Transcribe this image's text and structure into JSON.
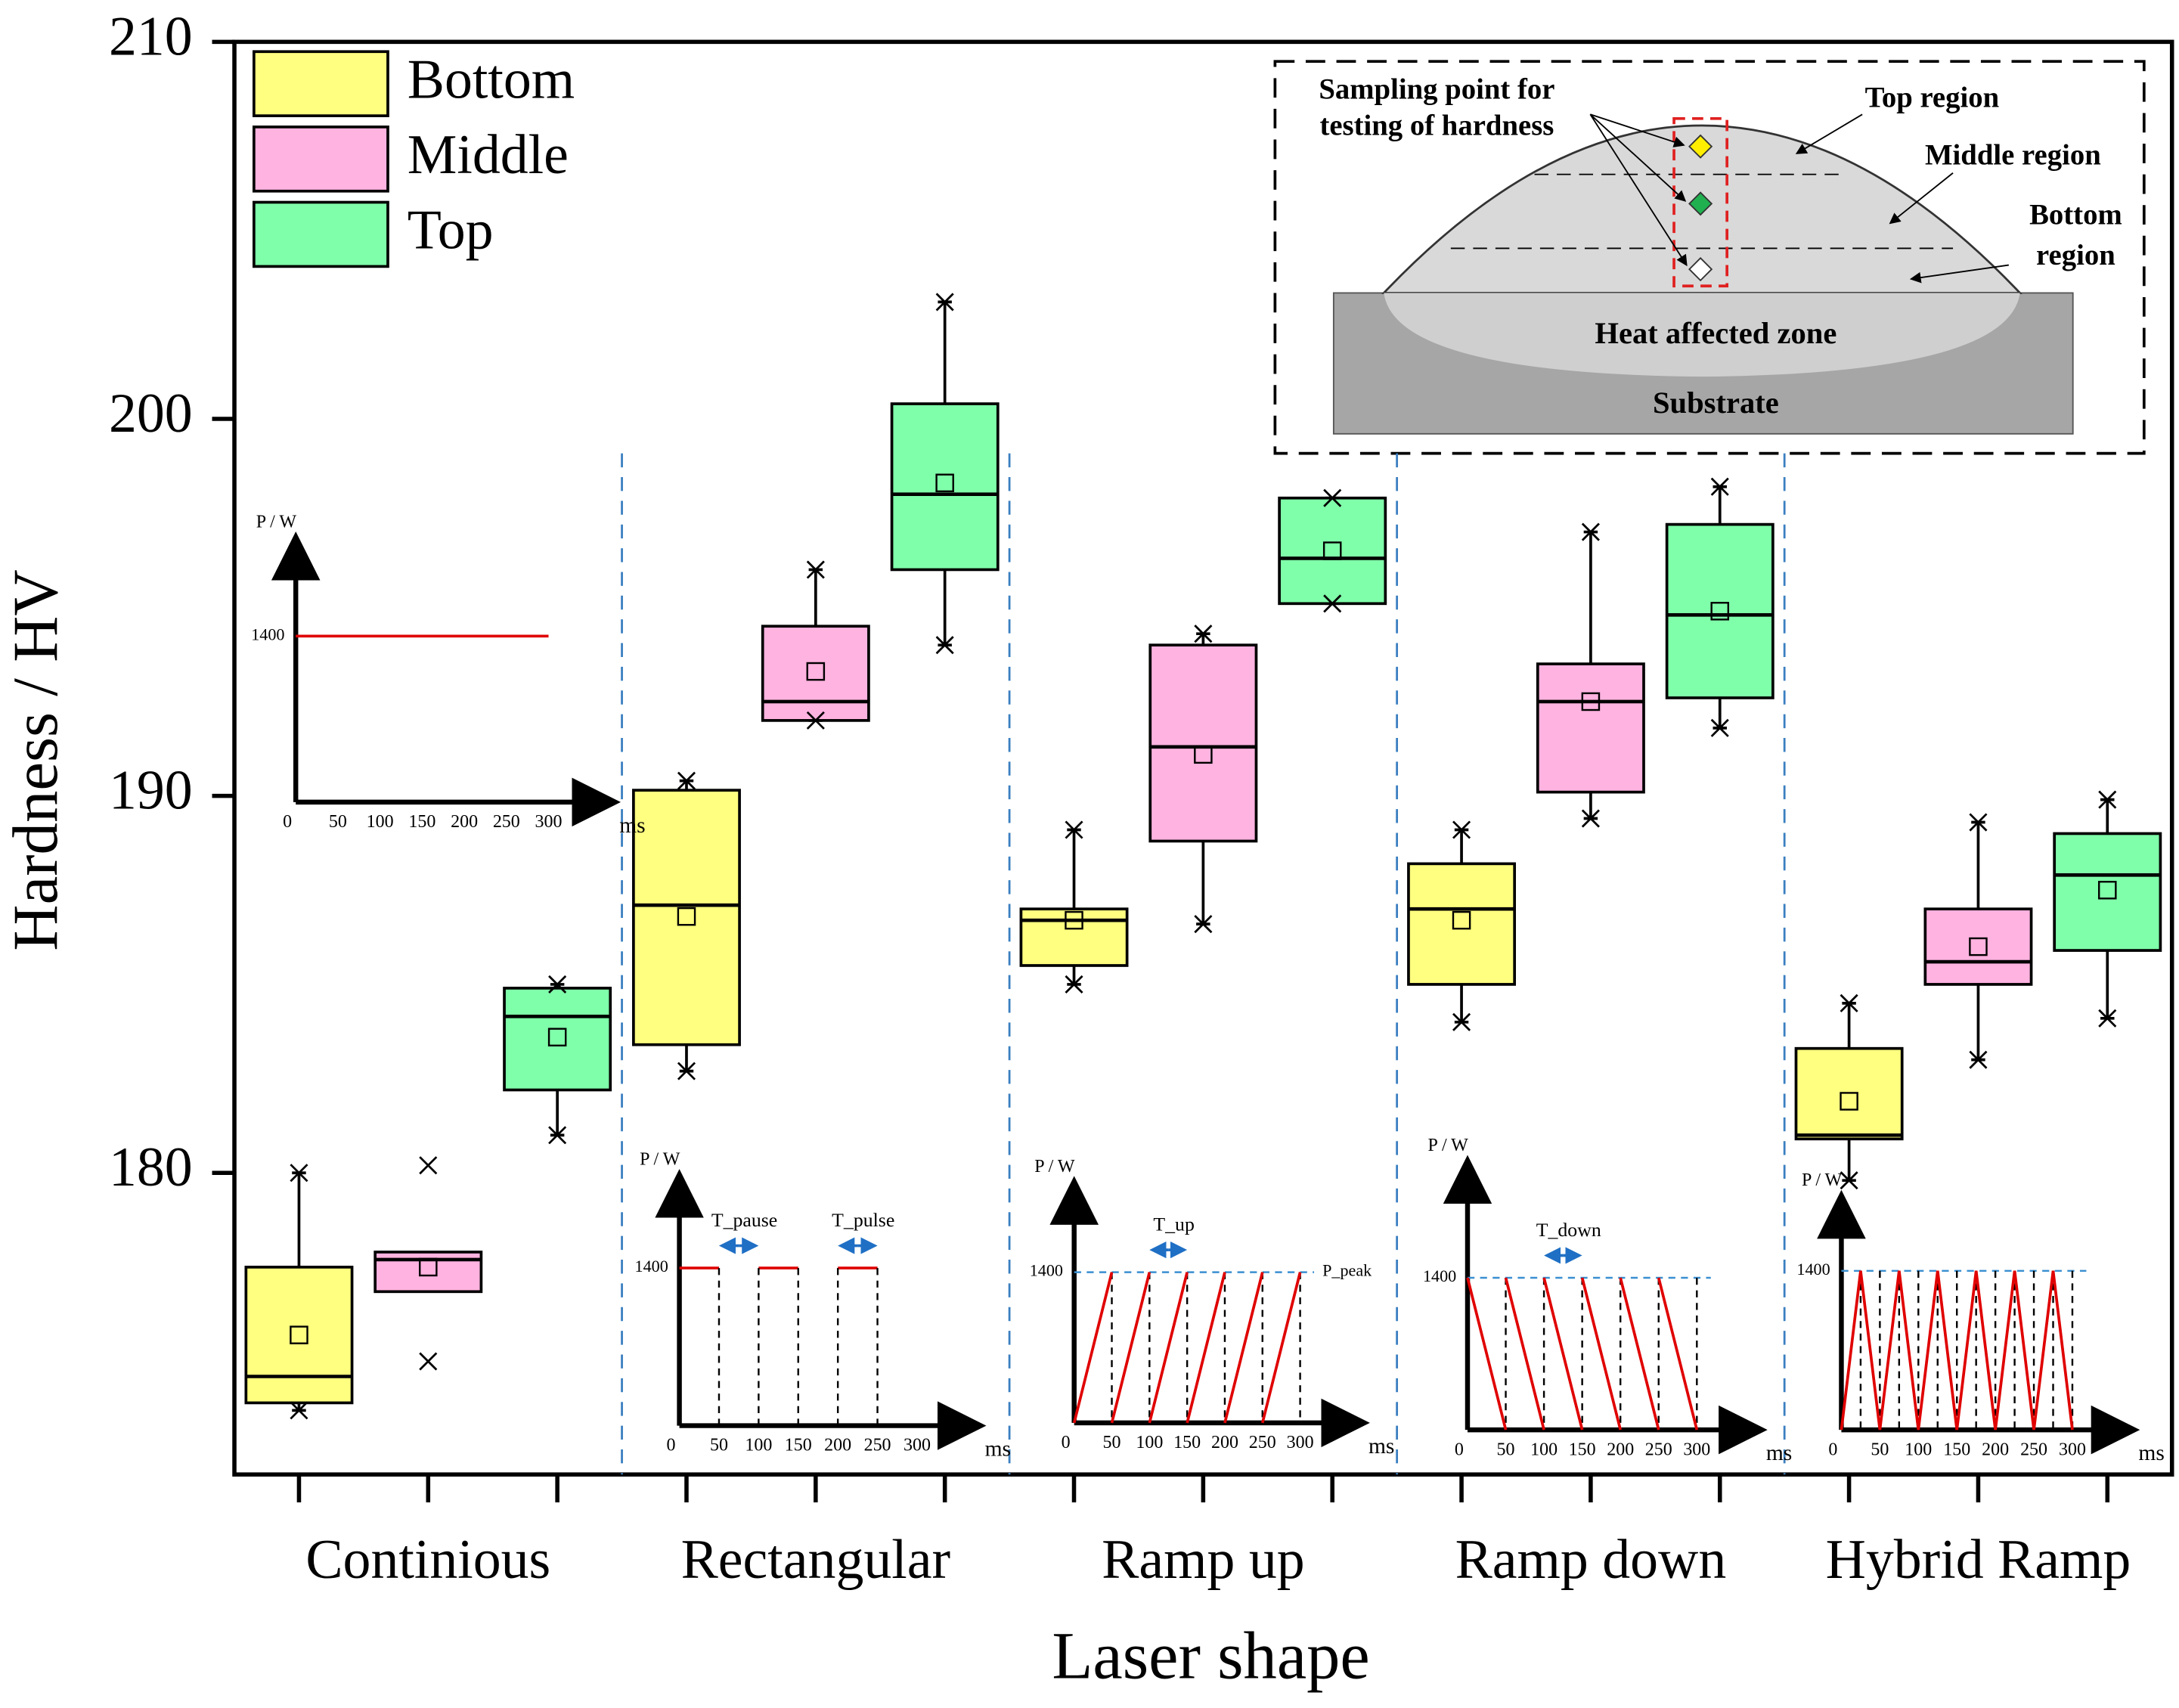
{
  "chart_data": {
    "type": "box",
    "ylabel": "Hardness / HV",
    "xlabel": "Laser shape",
    "categories": [
      "Continious",
      "Rectangular",
      "Ramp up",
      "Ramp down",
      "Hybrid Ramp"
    ],
    "ylim": [
      172,
      210
    ],
    "yticks": [
      180,
      190,
      200,
      210
    ],
    "legend": "top-left",
    "series": [
      {
        "name": "Bottom",
        "color": "#ffff80",
        "boxes": [
          {
            "min": 173.7,
            "q1": 173.9,
            "median": 174.6,
            "q3": 177.5,
            "max": 180.0,
            "mean": 175.7,
            "whisker_low": 173.7,
            "whisker_high": 180.0
          },
          {
            "min": 182.7,
            "q1": 183.4,
            "median": 187.1,
            "q3": 190.15,
            "max": 190.4,
            "mean": 186.8,
            "whisker_low": 182.7,
            "whisker_high": 190.4
          },
          {
            "min": 185.0,
            "q1": 185.5,
            "median": 186.7,
            "q3": 187.0,
            "max": 189.1,
            "mean": 186.7,
            "whisker_low": 185.0,
            "whisker_high": 189.1
          },
          {
            "min": 184.0,
            "q1": 185.0,
            "median": 187.0,
            "q3": 188.2,
            "max": 189.1,
            "mean": 186.7,
            "whisker_low": 184.0,
            "whisker_high": 189.1
          },
          {
            "min": 179.8,
            "q1": 180.9,
            "median": 181.0,
            "q3": 183.3,
            "max": 184.5,
            "mean": 181.9,
            "whisker_low": 179.8,
            "whisker_high": 184.5
          }
        ]
      },
      {
        "name": "Middle",
        "color": "#ffb3e0",
        "boxes": [
          {
            "min": 175.0,
            "q1": 176.85,
            "median": 177.7,
            "q3": 177.9,
            "max": 180.2,
            "mean": 177.5,
            "whisker_low": null,
            "whisker_high": null
          },
          {
            "min": 192.0,
            "q1": 192.0,
            "median": 192.5,
            "q3": 194.5,
            "max": 196.0,
            "mean": 193.3,
            "whisker_low": 192.0,
            "whisker_high": 196.0
          },
          {
            "min": 186.6,
            "q1": 188.8,
            "median": 191.3,
            "q3": 194.0,
            "max": 194.3,
            "mean": 191.1,
            "whisker_low": 186.6,
            "whisker_high": 194.3
          },
          {
            "min": 189.4,
            "q1": 190.1,
            "median": 192.5,
            "q3": 193.5,
            "max": 197.0,
            "mean": 192.5,
            "whisker_low": 189.4,
            "whisker_high": 197.0
          },
          {
            "min": 183.0,
            "q1": 185.0,
            "median": 185.6,
            "q3": 187.0,
            "max": 189.3,
            "mean": 186.0,
            "whisker_low": 183.0,
            "whisker_high": 189.3
          }
        ]
      },
      {
        "name": "Top",
        "color": "#80ffaa",
        "boxes": [
          {
            "min": 181.0,
            "q1": 182.2,
            "median": 184.15,
            "q3": 184.9,
            "max": 185.0,
            "mean": 183.6,
            "whisker_low": 181.0,
            "whisker_high": 185.0
          },
          {
            "min": 194.0,
            "q1": 196.0,
            "median": 198.0,
            "q3": 200.4,
            "max": 203.1,
            "mean": 198.3,
            "whisker_low": 194.0,
            "whisker_high": 203.1
          },
          {
            "min": 195.1,
            "q1": 195.1,
            "median": 196.3,
            "q3": 197.9,
            "max": 197.9,
            "mean": 196.5,
            "whisker_low": 195.1,
            "whisker_high": 197.9
          },
          {
            "min": 191.8,
            "q1": 192.6,
            "median": 194.8,
            "q3": 197.2,
            "max": 198.2,
            "mean": 194.9,
            "whisker_low": 191.8,
            "whisker_high": 198.2
          },
          {
            "min": 184.1,
            "q1": 185.9,
            "median": 187.9,
            "q3": 189.0,
            "max": 189.9,
            "mean": 187.5,
            "whisker_low": 184.1,
            "whisker_high": 189.9
          }
        ]
      }
    ],
    "inset": {
      "ylabel": "P / W",
      "xlabel": "ms",
      "level": 1400,
      "xticks": [
        0,
        50,
        100,
        150,
        200,
        250,
        300
      ],
      "xlim": [
        0,
        300
      ],
      "annotations": [
        [],
        [
          "T_pause",
          "T_pulse"
        ],
        [
          "T_up",
          "P_peak"
        ],
        [
          "T_down"
        ],
        []
      ]
    },
    "schematic": {
      "sampling": [
        "Sampling point for",
        "testing of hardness"
      ],
      "top": "Top region",
      "middle": "Middle region",
      "bottom": [
        "Bottom",
        "region"
      ],
      "haz": "Heat affected zone",
      "substrate": "Substrate"
    }
  }
}
